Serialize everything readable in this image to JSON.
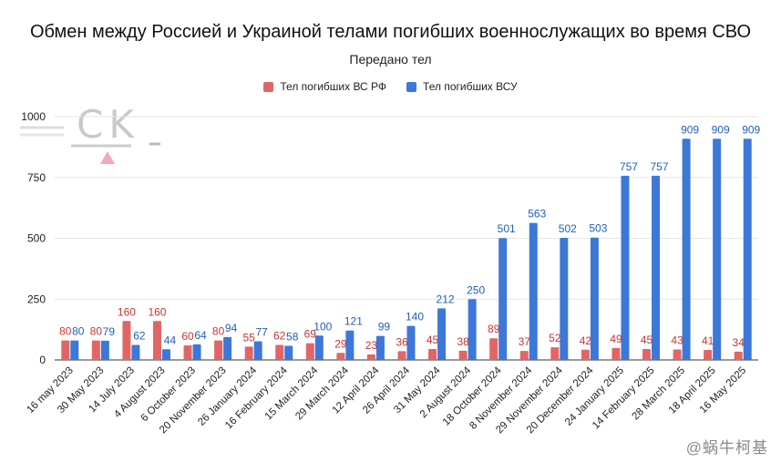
{
  "title": "Обмен между Россией и Украиной телами погибших военнослужащих во время СВО",
  "subtitle": "Передано тел",
  "watermark_logo_text": "CK",
  "watermark_text": "@蜗牛柯基",
  "colors": {
    "russia": "#e06666",
    "ukraine": "#3c78d8",
    "russia_label": "#cc3333",
    "ukraine_label": "#1f5fbf",
    "grid": "#e6e6e6"
  },
  "chart_data": {
    "type": "bar",
    "title": "Обмен между Россией и Украиной телами погибших военнослужащих во время СВО",
    "subtitle": "Передано тел",
    "categories": [
      "16 may 2023",
      "30 May 2023",
      "14 July 2023",
      "4 August 2023",
      "6 October 2023",
      "20 November 2023",
      "26 January 2024",
      "16 February 2024",
      "15 March 2024",
      "29 March 2024",
      "12 April 2024",
      "26 April 2024",
      "31 May 2024",
      "2 August 2024",
      "18 October 2024",
      "8 November 2024",
      "29 November 2024",
      "20 December 2024",
      "24 January 2025",
      "14 February 2025",
      "28 March 2025",
      "18 April 2025",
      "16 May 2025"
    ],
    "series": [
      {
        "name": "Тел погибших ВС  РФ",
        "values": [
          80,
          80,
          160,
          160,
          60,
          80,
          55,
          62,
          69,
          29,
          23,
          36,
          45,
          38,
          89,
          37,
          52,
          42,
          49,
          45,
          43,
          41,
          34
        ]
      },
      {
        "name": "Тел погибших ВСУ",
        "values": [
          80,
          79,
          62,
          44,
          64,
          94,
          77,
          58,
          100,
          121,
          99,
          140,
          212,
          250,
          501,
          563,
          502,
          503,
          757,
          757,
          909,
          909,
          909
        ]
      }
    ],
    "data_labels_russia": [
      "80",
      "80",
      "160",
      "160",
      "60",
      "80",
      "55",
      "62",
      "69",
      "29",
      "23",
      "36",
      "45",
      "38",
      "89",
      "37",
      "52",
      "42",
      "49",
      "45",
      "43",
      "41",
      "34"
    ],
    "yticks": [
      "0",
      "250",
      "500",
      "750",
      "1000"
    ],
    "ylim": [
      0,
      1000
    ],
    "xlabel": "",
    "ylabel": "",
    "grid": true,
    "legend_position": "top"
  }
}
